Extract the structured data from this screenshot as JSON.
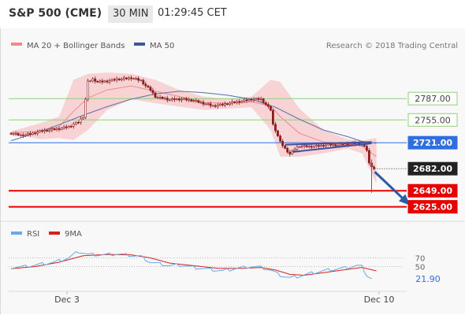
{
  "header": {
    "title": "S&P 500 (CME)",
    "timeframe": "30 MIN",
    "clock": "01:29:45 CET"
  },
  "legend": {
    "bollinger": "MA 20 + Bollinger Bands",
    "ma50": "MA 50",
    "credit": "Research © 2018 Trading Central",
    "rsi": "RSI",
    "rsi_ma": "9MA"
  },
  "colors": {
    "candle": "#8b1d1d",
    "bollinger_fill": "#f7c7c9",
    "bollinger_line": "#ef8a8c",
    "ma50": "#5a6fa8",
    "resistance_green": "#8fcf7a",
    "pivot_blue": "#2f6fe0",
    "support_red": "#e60000",
    "last_price_box": "#222222",
    "arrow": "#2a5aa8",
    "rsi_line": "#6aa9e6",
    "rsi_ma_line": "#d42020",
    "triangle": "#3f4fa0"
  },
  "chart_data": [
    {
      "type": "candlestick",
      "title": "S&P 500 (CME)",
      "timeframe": "30 MIN",
      "ylim": [
        2608,
        2845
      ],
      "x_labels": [
        "Dec 3",
        "Dec 10"
      ],
      "price_levels": [
        {
          "label": "2787.00",
          "value": 2787,
          "role": "resistance",
          "color": "#8fcf7a",
          "style": "thin"
        },
        {
          "label": "2755.00",
          "value": 2755,
          "role": "resistance",
          "color": "#8fcf7a",
          "style": "thin"
        },
        {
          "label": "2721.00",
          "value": 2721,
          "role": "pivot",
          "color": "#2f6fe0",
          "style": "thin"
        },
        {
          "label": "2682.00",
          "value": 2682,
          "role": "last",
          "color": "#222222",
          "style": "dotted"
        },
        {
          "label": "2649.00",
          "value": 2649,
          "role": "support",
          "color": "#e60000",
          "style": "thick"
        },
        {
          "label": "2625.00",
          "value": 2625,
          "role": "support",
          "color": "#e60000",
          "style": "thick"
        }
      ],
      "close_path": [
        [
          0,
          2735
        ],
        [
          4,
          2732
        ],
        [
          8,
          2734
        ],
        [
          12,
          2738
        ],
        [
          16,
          2740
        ],
        [
          20,
          2742
        ],
        [
          24,
          2745
        ],
        [
          28,
          2752
        ],
        [
          30,
          2760
        ],
        [
          32,
          2812
        ],
        [
          34,
          2816
        ],
        [
          36,
          2812
        ],
        [
          40,
          2813
        ],
        [
          44,
          2816
        ],
        [
          48,
          2817
        ],
        [
          50,
          2818
        ],
        [
          54,
          2814
        ],
        [
          56,
          2806
        ],
        [
          58,
          2800
        ],
        [
          60,
          2790
        ],
        [
          62,
          2788
        ],
        [
          64,
          2787
        ],
        [
          66,
          2785
        ],
        [
          68,
          2786
        ],
        [
          72,
          2786
        ],
        [
          76,
          2784
        ],
        [
          80,
          2780
        ],
        [
          84,
          2776
        ],
        [
          88,
          2778
        ],
        [
          92,
          2781
        ],
        [
          96,
          2783
        ],
        [
          100,
          2786
        ],
        [
          104,
          2786
        ],
        [
          106,
          2778
        ],
        [
          108,
          2770
        ],
        [
          109,
          2748
        ],
        [
          110,
          2740
        ],
        [
          112,
          2722
        ],
        [
          114,
          2712
        ],
        [
          116,
          2704
        ],
        [
          118,
          2712
        ],
        [
          120,
          2716
        ],
        [
          124,
          2715
        ],
        [
          128,
          2716
        ],
        [
          132,
          2718
        ],
        [
          136,
          2717
        ],
        [
          140,
          2719
        ],
        [
          144,
          2720
        ],
        [
          146,
          2719
        ],
        [
          148,
          2710
        ],
        [
          149,
          2690
        ],
        [
          150,
          2686
        ],
        [
          151,
          2682
        ]
      ],
      "wicks": [
        [
          150,
          2646,
          2696
        ]
      ],
      "ma50": [
        [
          0,
          2724
        ],
        [
          10,
          2735
        ],
        [
          20,
          2748
        ],
        [
          30,
          2762
        ],
        [
          40,
          2775
        ],
        [
          50,
          2786
        ],
        [
          60,
          2794
        ],
        [
          70,
          2798
        ],
        [
          80,
          2796
        ],
        [
          90,
          2792
        ],
        [
          100,
          2786
        ],
        [
          110,
          2774
        ],
        [
          120,
          2756
        ],
        [
          130,
          2740
        ],
        [
          140,
          2730
        ],
        [
          146,
          2723
        ],
        [
          152,
          2720
        ]
      ],
      "bollinger_bands": [
        [
          0,
          2738,
          2735
        ],
        [
          12,
          2750,
          2726
        ],
        [
          20,
          2760,
          2728
        ],
        [
          26,
          2815,
          2725
        ],
        [
          32,
          2824,
          2740
        ],
        [
          40,
          2826,
          2770
        ],
        [
          50,
          2824,
          2786
        ],
        [
          60,
          2815,
          2780
        ],
        [
          70,
          2800,
          2775
        ],
        [
          80,
          2790,
          2770
        ],
        [
          90,
          2786,
          2772
        ],
        [
          100,
          2790,
          2774
        ],
        [
          108,
          2815,
          2740
        ],
        [
          112,
          2812,
          2700
        ],
        [
          120,
          2772,
          2700
        ],
        [
          130,
          2740,
          2705
        ],
        [
          140,
          2726,
          2712
        ],
        [
          146,
          2724,
          2705
        ],
        [
          152,
          2728,
          2660
        ]
      ],
      "bollinger_mid": [
        [
          0,
          2736
        ],
        [
          12,
          2738
        ],
        [
          20,
          2745
        ],
        [
          26,
          2768
        ],
        [
          32,
          2788
        ],
        [
          40,
          2800
        ],
        [
          50,
          2806
        ],
        [
          60,
          2798
        ],
        [
          70,
          2790
        ],
        [
          80,
          2781
        ],
        [
          90,
          2780
        ],
        [
          100,
          2782
        ],
        [
          108,
          2776
        ],
        [
          112,
          2760
        ],
        [
          120,
          2735
        ],
        [
          130,
          2722
        ],
        [
          140,
          2719
        ],
        [
          146,
          2716
        ],
        [
          152,
          2700
        ]
      ],
      "triangle_pattern": [
        {
          "from": [
            117,
            2707
          ],
          "to": [
            150,
            2720
          ]
        },
        {
          "from": [
            114,
            2718
          ],
          "to": [
            150,
            2722
          ]
        }
      ],
      "forecast_arrow": {
        "from": [
          150,
          2682
        ],
        "to": [
          162,
          2625
        ]
      }
    },
    {
      "type": "line",
      "title": "RSI",
      "series": [
        {
          "name": "RSI",
          "points": [
            [
              0,
              48
            ],
            [
              6,
              50
            ],
            [
              12,
              55
            ],
            [
              18,
              60
            ],
            [
              24,
              70
            ],
            [
              28,
              85
            ],
            [
              32,
              78
            ],
            [
              38,
              77
            ],
            [
              44,
              79
            ],
            [
              50,
              76
            ],
            [
              54,
              73
            ],
            [
              58,
              60
            ],
            [
              62,
              56
            ],
            [
              66,
              52
            ],
            [
              70,
              54
            ],
            [
              76,
              48
            ],
            [
              82,
              44
            ],
            [
              88,
              40
            ],
            [
              94,
              46
            ],
            [
              100,
              50
            ],
            [
              104,
              48
            ],
            [
              108,
              42
            ],
            [
              112,
              30
            ],
            [
              116,
              24
            ],
            [
              120,
              28
            ],
            [
              126,
              36
            ],
            [
              132,
              42
            ],
            [
              138,
              46
            ],
            [
              144,
              52
            ],
            [
              146,
              50
            ],
            [
              148,
              30
            ],
            [
              150,
              22
            ]
          ]
        },
        {
          "name": "9MA",
          "points": [
            [
              0,
              45
            ],
            [
              10,
              50
            ],
            [
              20,
              60
            ],
            [
              30,
              75
            ],
            [
              40,
              78
            ],
            [
              50,
              77
            ],
            [
              58,
              70
            ],
            [
              66,
              58
            ],
            [
              76,
              52
            ],
            [
              86,
              46
            ],
            [
              96,
              46
            ],
            [
              104,
              48
            ],
            [
              110,
              42
            ],
            [
              116,
              32
            ],
            [
              122,
              30
            ],
            [
              130,
              36
            ],
            [
              138,
              42
            ],
            [
              146,
              48
            ],
            [
              152,
              40
            ]
          ]
        }
      ],
      "levels": [
        70,
        50
      ],
      "last_value": "21.90",
      "level_labels": [
        "70",
        "50"
      ],
      "ylim": [
        0,
        100
      ]
    }
  ]
}
